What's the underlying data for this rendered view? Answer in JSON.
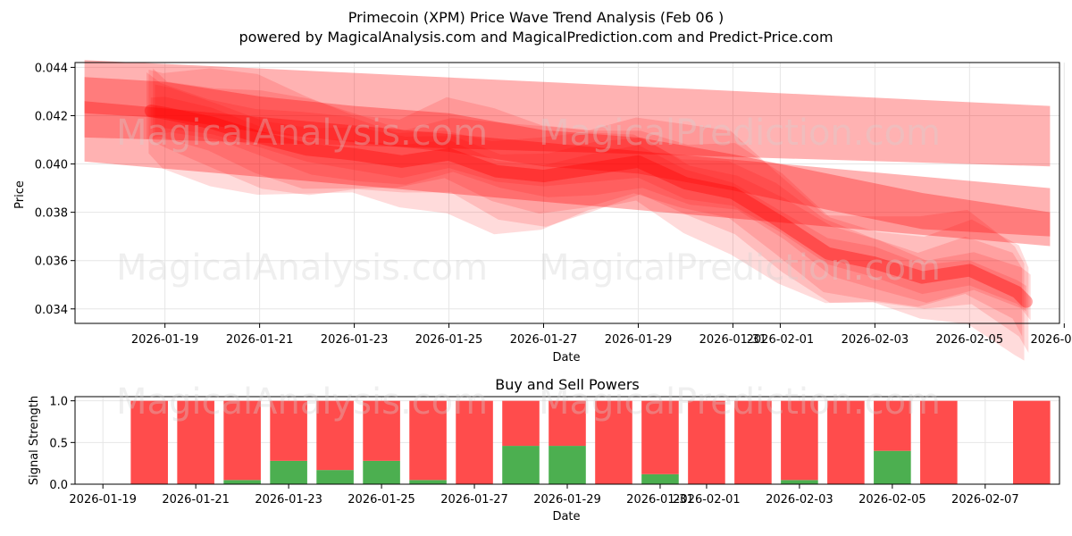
{
  "title_line1": "Primecoin (XPM) Price Wave Trend Analysis (Feb 06 )",
  "title_line2": "powered by MagicalAnalysis.com and MagicalPrediction.com and Predict-Price.com",
  "watermarks": [
    "MagicalAnalysis.com",
    "MagicalPrediction.com"
  ],
  "colors": {
    "band": "#ff0000",
    "buy": "#4caf50",
    "sell": "#ff4c4c",
    "grid": "#e6e6e6"
  },
  "chart_data": [
    {
      "type": "area",
      "title": "Primecoin (XPM) Price Wave Trend Analysis (Feb 06 )",
      "xlabel": "Date",
      "ylabel": "Price",
      "grid": true,
      "xlim": [
        -0.9,
        19.9
      ],
      "ylim": [
        0.0334,
        0.0442
      ],
      "x_ticks": [
        {
          "v": 1,
          "label": "2026-01-19"
        },
        {
          "v": 3,
          "label": "2026-01-21"
        },
        {
          "v": 5,
          "label": "2026-01-23"
        },
        {
          "v": 7,
          "label": "2026-01-25"
        },
        {
          "v": 9,
          "label": "2026-01-27"
        },
        {
          "v": 11,
          "label": "2026-01-29"
        },
        {
          "v": 13,
          "label": "2026-01-31"
        },
        {
          "v": 14,
          "label": "2026-02-01"
        },
        {
          "v": 16,
          "label": "2026-02-03"
        },
        {
          "v": 18,
          "label": "2026-02-05"
        },
        {
          "v": 20,
          "label": "2026-02-07"
        }
      ],
      "y_ticks": [
        0.034,
        0.036,
        0.038,
        0.04,
        0.042,
        0.044
      ],
      "y_tick_labels": [
        "0.034",
        "0.036",
        "0.038",
        "0.040",
        "0.042",
        "0.044"
      ],
      "price_wave": {
        "x": [
          0.7,
          1.0,
          2.0,
          3.0,
          4.0,
          5.0,
          6.0,
          7.0,
          8.0,
          9.0,
          10.0,
          11.0,
          12.0,
          13.0,
          14.0,
          15.0,
          16.0,
          17.0,
          18.0,
          19.0,
          19.2
        ],
        "y": [
          0.0422,
          0.0421,
          0.0417,
          0.0411,
          0.0406,
          0.0404,
          0.0401,
          0.0404,
          0.0397,
          0.0395,
          0.0398,
          0.0401,
          0.0392,
          0.0388,
          0.0376,
          0.0363,
          0.0359,
          0.0353,
          0.0356,
          0.0347,
          0.0343
        ]
      },
      "trend_bands": [
        {
          "x": [
            -0.7,
            19.7
          ],
          "upper": [
            0.0443,
            0.0424
          ],
          "lower": [
            0.0411,
            0.0399
          ]
        },
        {
          "x": [
            -0.7,
            19.7
          ],
          "upper": [
            0.0426,
            0.039
          ],
          "lower": [
            0.0401,
            0.0366
          ]
        },
        {
          "x": [
            -0.7,
            1.0,
            3.0,
            5.0,
            7.0,
            9.0,
            11.0,
            13.0,
            15.0,
            17.0,
            19.7
          ],
          "upper": [
            0.0436,
            0.0434,
            0.0428,
            0.0424,
            0.0421,
            0.0414,
            0.0411,
            0.0404,
            0.0396,
            0.0388,
            0.038
          ],
          "lower": [
            0.0421,
            0.0419,
            0.0413,
            0.0409,
            0.0405,
            0.0399,
            0.0396,
            0.0389,
            0.0381,
            0.0373,
            0.037
          ]
        }
      ]
    },
    {
      "type": "bar",
      "title": "Buy and Sell Powers",
      "xlabel": "Date",
      "ylabel": "Signal Strength",
      "grid": true,
      "xlim": [
        -0.6,
        20.6
      ],
      "ylim": [
        0,
        1.05
      ],
      "x_ticks": [
        {
          "v": 0,
          "label": "2026-01-19"
        },
        {
          "v": 2,
          "label": "2026-01-21"
        },
        {
          "v": 4,
          "label": "2026-01-23"
        },
        {
          "v": 6,
          "label": "2026-01-25"
        },
        {
          "v": 8,
          "label": "2026-01-27"
        },
        {
          "v": 10,
          "label": "2026-01-29"
        },
        {
          "v": 12,
          "label": "2026-01-31"
        },
        {
          "v": 13,
          "label": "2026-02-01"
        },
        {
          "v": 15,
          "label": "2026-02-03"
        },
        {
          "v": 17,
          "label": "2026-02-05"
        },
        {
          "v": 19,
          "label": "2026-02-07"
        }
      ],
      "y_ticks": [
        0,
        0.5,
        1.0
      ],
      "y_tick_labels": [
        "0.0",
        "0.5",
        "1.0"
      ],
      "bar_x": [
        1,
        2,
        3,
        4,
        5,
        6,
        7,
        8,
        9,
        10,
        11,
        12,
        13,
        14,
        15,
        16,
        17,
        18,
        20
      ],
      "series": [
        {
          "name": "Buy",
          "values": [
            0.0,
            0.0,
            0.05,
            0.28,
            0.17,
            0.28,
            0.05,
            0.0,
            0.46,
            0.46,
            0.0,
            0.12,
            0.0,
            0.0,
            0.05,
            0.0,
            0.4,
            0.0,
            0.0
          ]
        },
        {
          "name": "Sell",
          "values": [
            1.0,
            1.0,
            0.95,
            0.72,
            0.83,
            0.72,
            0.95,
            1.0,
            0.54,
            0.54,
            1.0,
            0.88,
            1.0,
            1.0,
            0.95,
            1.0,
            0.6,
            1.0,
            1.0
          ]
        }
      ]
    }
  ]
}
